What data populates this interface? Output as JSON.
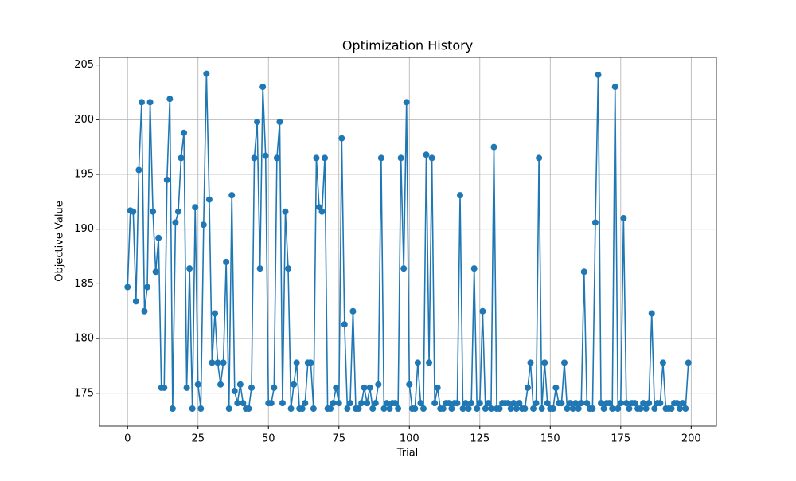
{
  "chart_data": {
    "type": "line",
    "title": "Optimization History",
    "xlabel": "Trial",
    "ylabel": "Objective Value",
    "x": [
      0,
      1,
      2,
      3,
      4,
      5,
      6,
      7,
      8,
      9,
      10,
      11,
      12,
      13,
      14,
      15,
      16,
      17,
      18,
      19,
      20,
      21,
      22,
      23,
      24,
      25,
      26,
      27,
      28,
      29,
      30,
      31,
      32,
      33,
      34,
      35,
      36,
      37,
      38,
      39,
      40,
      41,
      42,
      43,
      44,
      45,
      46,
      47,
      48,
      49,
      50,
      51,
      52,
      53,
      54,
      55,
      56,
      57,
      58,
      59,
      60,
      61,
      62,
      63,
      64,
      65,
      66,
      67,
      68,
      69,
      70,
      71,
      72,
      73,
      74,
      75,
      76,
      77,
      78,
      79,
      80,
      81,
      82,
      83,
      84,
      85,
      86,
      87,
      88,
      89,
      90,
      91,
      92,
      93,
      94,
      95,
      96,
      97,
      98,
      99,
      100,
      101,
      102,
      103,
      104,
      105,
      106,
      107,
      108,
      109,
      110,
      111,
      112,
      113,
      114,
      115,
      116,
      117,
      118,
      119,
      120,
      121,
      122,
      123,
      124,
      125,
      126,
      127,
      128,
      129,
      130,
      131,
      132,
      133,
      134,
      135,
      136,
      137,
      138,
      139,
      140,
      141,
      142,
      143,
      144,
      145,
      146,
      147,
      148,
      149,
      150,
      151,
      152,
      153,
      154,
      155,
      156,
      157,
      158,
      159,
      160,
      161,
      162,
      163,
      164,
      165,
      166,
      167,
      168,
      169,
      170,
      171,
      172,
      173,
      174,
      175,
      176,
      177,
      178,
      179,
      180,
      181,
      182,
      183,
      184,
      185,
      186,
      187,
      188,
      189,
      190,
      191,
      192,
      193,
      194,
      195,
      196,
      197,
      198,
      199
    ],
    "series": [
      {
        "color": "#1f77b4",
        "values": [
          184.7,
          191.7,
          191.6,
          183.4,
          195.4,
          201.6,
          182.5,
          184.7,
          201.6,
          191.6,
          186.1,
          189.2,
          175.5,
          175.5,
          194.5,
          201.9,
          173.6,
          190.6,
          191.6,
          196.5,
          198.8,
          175.5,
          186.4,
          173.6,
          192.0,
          175.8,
          173.6,
          190.4,
          204.2,
          192.7,
          177.8,
          182.3,
          177.8,
          175.8,
          177.8,
          187.0,
          173.6,
          193.1,
          175.2,
          174.1,
          175.8,
          174.1,
          173.6,
          173.6,
          175.5,
          196.5,
          199.8,
          186.4,
          203.0,
          196.7,
          174.1,
          174.1,
          175.5,
          196.5,
          199.8,
          174.1,
          191.6,
          186.4,
          173.6,
          175.8,
          177.8,
          173.6,
          173.6,
          174.1,
          177.8,
          177.8,
          173.6,
          196.5,
          192.0,
          191.6,
          196.5,
          173.6,
          173.6,
          174.1,
          175.5,
          174.1,
          198.3,
          181.3,
          173.6,
          174.1,
          182.5,
          173.6,
          173.6,
          174.1,
          175.5,
          174.1,
          175.5,
          173.6,
          174.1,
          175.8,
          196.5,
          173.6,
          174.1,
          173.6,
          174.1,
          174.1,
          173.6,
          196.5,
          186.4,
          201.6,
          175.8,
          173.6,
          173.6,
          177.8,
          174.1,
          173.6,
          196.8,
          177.8,
          196.5,
          174.1,
          175.5,
          173.6,
          173.6,
          174.1,
          174.1,
          173.6,
          174.1,
          174.1,
          193.1,
          173.6,
          174.1,
          173.6,
          174.1,
          186.4,
          173.6,
          174.1,
          182.5,
          173.6,
          174.1,
          173.6,
          197.5,
          173.6,
          173.6,
          174.1,
          174.1,
          174.1,
          173.6,
          174.1,
          173.6,
          174.1,
          173.6,
          173.6,
          175.5,
          177.8,
          173.6,
          174.1,
          196.5,
          173.6,
          177.8,
          174.1,
          173.6,
          173.6,
          175.5,
          174.1,
          174.1,
          177.8,
          173.6,
          174.1,
          173.6,
          174.1,
          173.6,
          174.1,
          186.1,
          174.1,
          173.6,
          173.6,
          190.6,
          204.1,
          174.1,
          173.6,
          174.1,
          174.1,
          173.6,
          203.0,
          173.6,
          174.1,
          191.0,
          174.1,
          173.6,
          174.1,
          174.1,
          173.6,
          173.6,
          174.1,
          173.6,
          174.1,
          182.3,
          173.6,
          174.1,
          174.1,
          177.8,
          173.6,
          173.6,
          173.6,
          174.1,
          174.1,
          173.6,
          174.1,
          173.6,
          177.8
        ]
      }
    ],
    "xlim": [
      -9.95,
      208.95
    ],
    "xticks": [
      0,
      25,
      50,
      75,
      100,
      125,
      150,
      175,
      200
    ],
    "ylim": [
      172.0,
      205.7
    ],
    "yticks": [
      175,
      180,
      185,
      190,
      195,
      200,
      205
    ],
    "grid": true
  }
}
